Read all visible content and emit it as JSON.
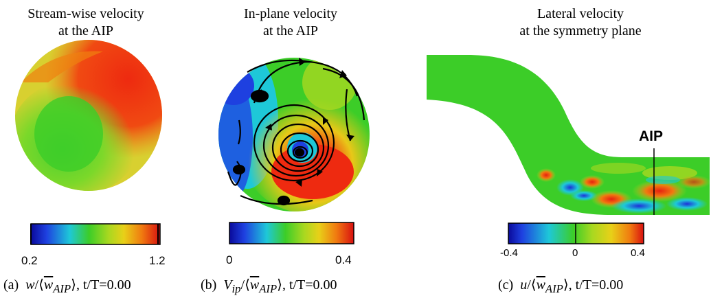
{
  "panels": [
    {
      "title_line1": "Stream-wise velocity",
      "title_line2": "at the AIP",
      "colorbar": {
        "min_label": "0.2",
        "max_label": "1.2"
      },
      "caption": {
        "prefix": "(a)",
        "var": "w",
        "sep": "/⟨",
        "mean": "w",
        "sub": "AIP",
        "close": "⟩",
        "time": ", t/T=0.00"
      }
    },
    {
      "title_line1": "In-plane velocity",
      "title_line2": "at the AIP",
      "colorbar": {
        "min_label": "0",
        "max_label": "0.4"
      },
      "caption": {
        "prefix": "(b)",
        "var": "V",
        "var_sub": "ip",
        "sep": "/⟨",
        "mean": "w",
        "sub": "AIP",
        "close": "⟩",
        "time": ", t/T=0.00"
      }
    },
    {
      "title_line1": "Lateral velocity",
      "title_line2": "at the symmetry plane",
      "colorbar": {
        "min_label": "-0.4",
        "mid_label": "0",
        "max_label": "0.4"
      },
      "marker_label": "AIP",
      "caption": {
        "prefix": "(c)",
        "var": "u",
        "sep": "/⟨",
        "mean": "w",
        "sub": "AIP",
        "close": "⟩",
        "time": ", t/T=0.00"
      }
    }
  ],
  "colors": {
    "red": "#ee2a10",
    "orange": "#f07a10",
    "yellow": "#d8d820",
    "green": "#3ccd28",
    "cyan": "#1ec8d8",
    "blue": "#1e40e0",
    "navy": "#0a1ea0"
  }
}
